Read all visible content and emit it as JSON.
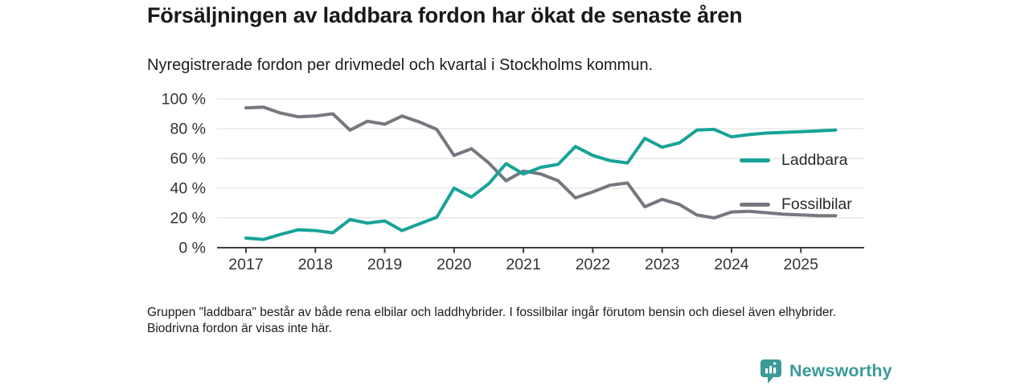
{
  "header": {
    "title": "Försäljningen av laddbara fordon har ökat de senaste åren",
    "subtitle": "Nyregistrerade fordon per drivmedel och kvartal i Stockholms kommun."
  },
  "footnote": "Gruppen \"laddbara\" består av både rena elbilar och laddhybrider. I fossilbilar ingår förutom bensin och diesel även elhybrider. Biodrivna fordon är visas inte här.",
  "branding": {
    "logo_text": "Newsworthy",
    "logo_icon": "bar-chart-pin-icon",
    "logo_color": "#3a9b99"
  },
  "colors": {
    "laddbara_line": "#17a398",
    "fossilbilar_line": "#75787f",
    "axis": "#3f3f3f",
    "gridline": "#e9e9e9",
    "background": "#ffffff"
  },
  "chart_data": {
    "type": "line",
    "title": "Försäljningen av laddbara fordon har ökat de senaste åren",
    "subtitle": "Nyregistrerade fordon per drivmedel och kvartal i Stockholms kommun.",
    "xlabel": "",
    "ylabel": "",
    "ylim": [
      0,
      100
    ],
    "y_ticks": [
      0,
      20,
      40,
      60,
      80,
      100
    ],
    "y_tick_labels": [
      "0 %",
      "20 %",
      "40 %",
      "60 %",
      "80 %",
      "100 %"
    ],
    "x_tick_labels": [
      "2017",
      "2018",
      "2019",
      "2020",
      "2021",
      "2022",
      "2023",
      "2024",
      "2025"
    ],
    "grid": true,
    "legend_position": "right-inside",
    "x": [
      "2017 Q1",
      "2017 Q2",
      "2017 Q3",
      "2017 Q4",
      "2018 Q1",
      "2018 Q2",
      "2018 Q3",
      "2018 Q4",
      "2019 Q1",
      "2019 Q2",
      "2019 Q3",
      "2019 Q4",
      "2020 Q1",
      "2020 Q2",
      "2020 Q3",
      "2020 Q4",
      "2021 Q1",
      "2021 Q2",
      "2021 Q3",
      "2021 Q4",
      "2022 Q1",
      "2022 Q2",
      "2022 Q3",
      "2022 Q4",
      "2023 Q1",
      "2023 Q2",
      "2023 Q3",
      "2023 Q4",
      "2024 Q1",
      "2024 Q2",
      "2024 Q3",
      "2024 Q4",
      "2025 Q1",
      "2025 Q2",
      "2025 Q3"
    ],
    "series": [
      {
        "name": "Laddbara",
        "color": "#17a398",
        "values": [
          6.5,
          5.5,
          9,
          12,
          11.5,
          10,
          19,
          16.5,
          18,
          11.5,
          16,
          20.5,
          40,
          34,
          43,
          56.5,
          49.5,
          54,
          56,
          68,
          62,
          58.5,
          57,
          73.5,
          67.5,
          70.5,
          79,
          79.5,
          74.5,
          76,
          77,
          77.5,
          78,
          78.5,
          79
        ]
      },
      {
        "name": "Fossilbilar",
        "color": "#75787f",
        "values": [
          94,
          94.5,
          90.5,
          88,
          88.5,
          90,
          79,
          85,
          83,
          88.5,
          84.5,
          79.5,
          62,
          66.5,
          57,
          45,
          51.5,
          49.5,
          45,
          33.5,
          37.5,
          42,
          43.5,
          27.5,
          32.5,
          29,
          22,
          20,
          24,
          24.5,
          23.5,
          22.5,
          22,
          21.5,
          21.5
        ]
      }
    ]
  }
}
